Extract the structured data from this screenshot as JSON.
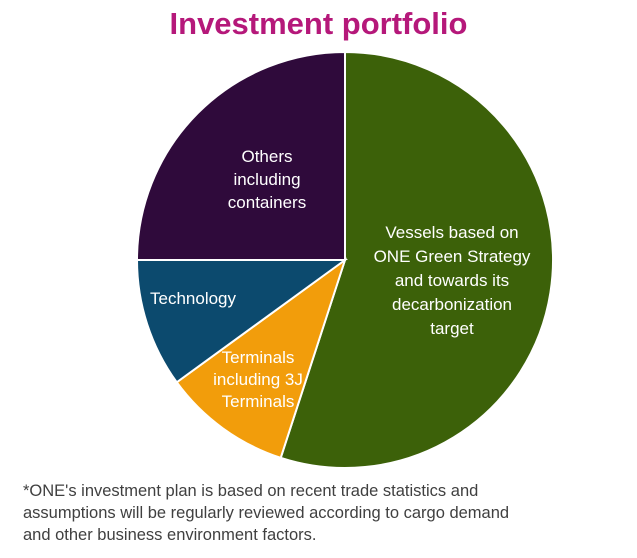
{
  "chart_data": {
    "type": "pie",
    "title": "Investment portfolio",
    "slices": [
      {
        "label_lines": [
          "Vessels based on",
          "ONE Green Strategy",
          "and towards its",
          "decarbonization",
          "target"
        ],
        "value": 55,
        "color": "#3c6109",
        "label_color": "#ffffff"
      },
      {
        "label_lines": [
          "Terminals",
          "including 3J",
          "Terminals"
        ],
        "value": 10,
        "color": "#f29d0b",
        "label_color": "#ffffff"
      },
      {
        "label_lines": [
          "Technology"
        ],
        "value": 10,
        "color": "#0c4a6e",
        "label_color": "#ffffff"
      },
      {
        "label_lines": [
          "Others",
          "including",
          "containers"
        ],
        "value": 25,
        "color": "#2f0a3b",
        "label_color": "#ffffff"
      }
    ],
    "start": "top",
    "direction": "clockwise"
  },
  "footnote": {
    "lines": [
      "*ONE's investment plan is based on recent trade statistics and",
      "assumptions will be regularly reviewed according to cargo demand",
      "and other business environment factors."
    ]
  }
}
